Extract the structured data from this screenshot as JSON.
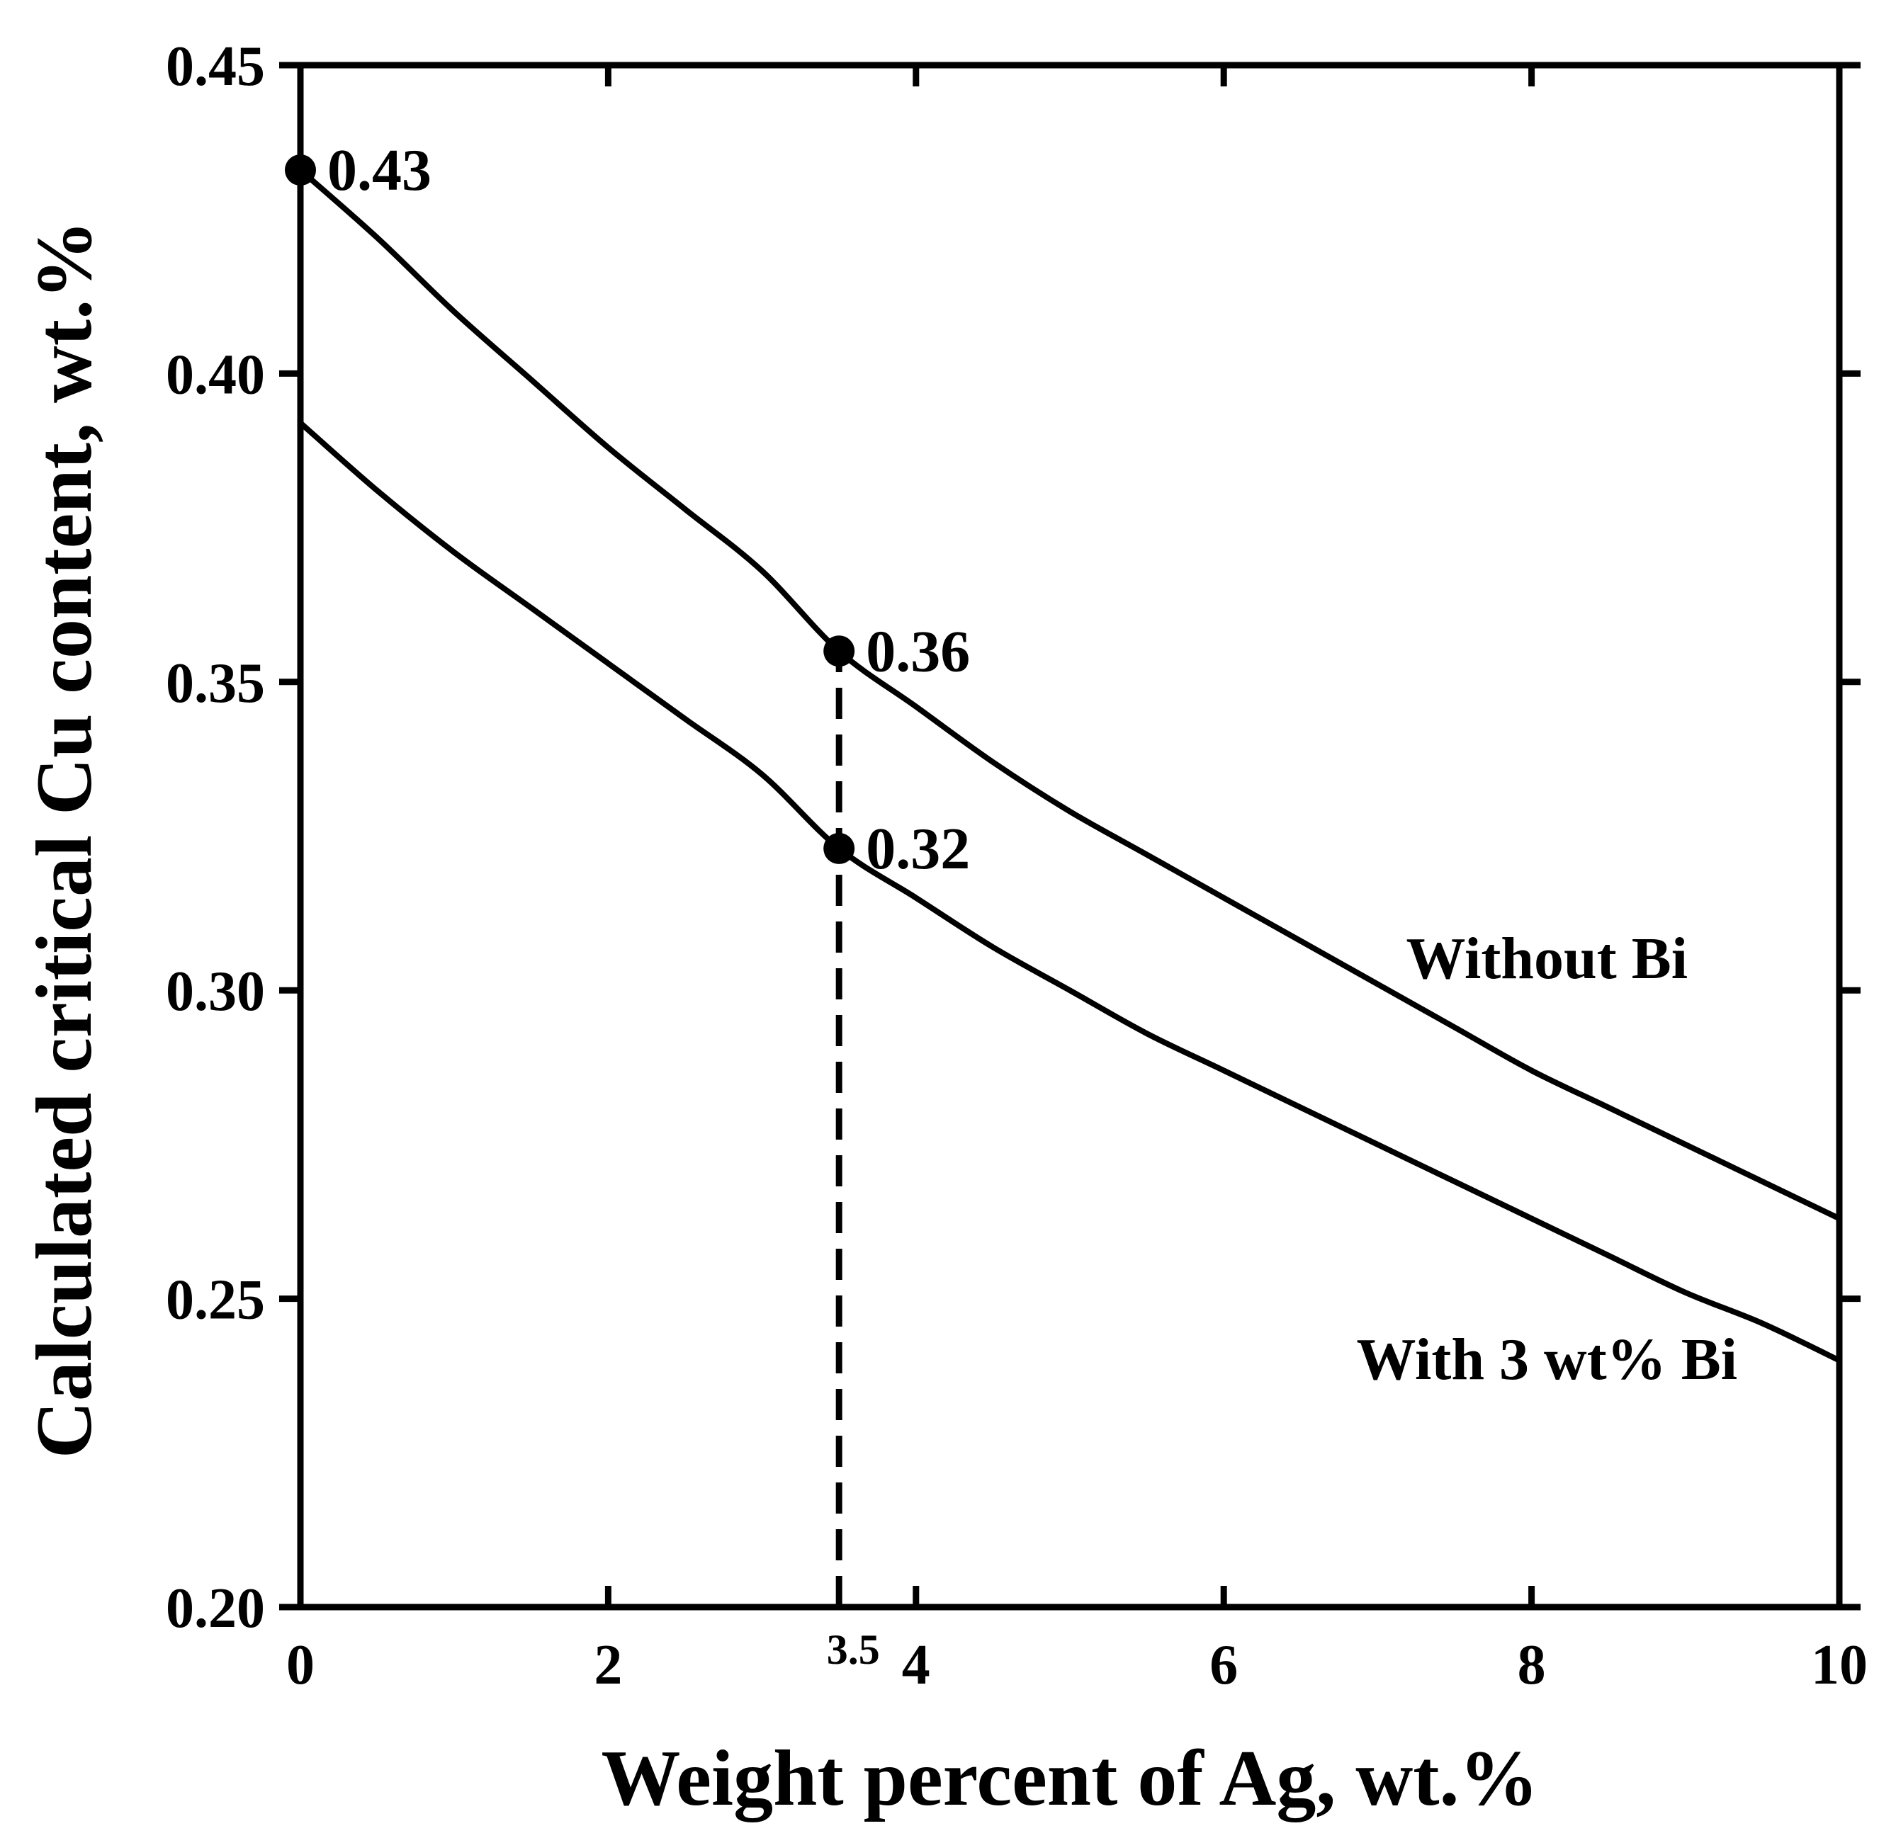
{
  "chart_data": {
    "type": "line",
    "xlabel": "Weight percent of Ag, wt.%",
    "ylabel": "Calculated critical Cu content, wt.%",
    "xlim": [
      0,
      10
    ],
    "ylim": [
      0.2,
      0.45
    ],
    "x_ticks": [
      0,
      2,
      4,
      6,
      8,
      10
    ],
    "x_tick_labels": [
      "0",
      "2",
      "4",
      "6",
      "8",
      "10"
    ],
    "y_ticks": [
      0.2,
      0.25,
      0.3,
      0.35,
      0.4,
      0.45
    ],
    "y_tick_labels": [
      "0.20",
      "0.25",
      "0.30",
      "0.35",
      "0.40",
      "0.45"
    ],
    "grid": false,
    "series": [
      {
        "name": "Without Bi",
        "x": [
          0,
          0.5,
          1,
          1.5,
          2,
          2.5,
          3,
          3.5,
          4,
          4.5,
          5,
          5.5,
          6,
          6.5,
          7,
          7.5,
          8,
          8.5,
          9,
          9.5,
          10
        ],
        "y": [
          0.433,
          0.422,
          0.41,
          0.399,
          0.388,
          0.378,
          0.368,
          0.355,
          0.346,
          0.337,
          0.329,
          0.322,
          0.315,
          0.308,
          0.301,
          0.294,
          0.287,
          0.281,
          0.275,
          0.269,
          0.263
        ]
      },
      {
        "name": "With 3 wt% Bi",
        "x": [
          0,
          0.5,
          1,
          1.5,
          2,
          2.5,
          3,
          3.5,
          4,
          4.5,
          5,
          5.5,
          6,
          6.5,
          7,
          7.5,
          8,
          8.5,
          9,
          9.5,
          10
        ],
        "y": [
          0.392,
          0.381,
          0.371,
          0.362,
          0.353,
          0.344,
          0.335,
          0.323,
          0.315,
          0.307,
          0.3,
          0.293,
          0.287,
          0.281,
          0.275,
          0.269,
          0.263,
          0.257,
          0.251,
          0.246,
          0.24
        ]
      }
    ],
    "markers": [
      {
        "x": 0,
        "y": 0.433,
        "label": "0.43"
      },
      {
        "x": 3.5,
        "y": 0.355,
        "label": "0.36"
      },
      {
        "x": 3.5,
        "y": 0.323,
        "label": "0.32"
      }
    ],
    "reference_line": {
      "x": 3.5,
      "y_from": 0.2,
      "y_to": 0.355,
      "style": "dashed",
      "label": "3.5"
    },
    "annotations": [
      {
        "text": "Without Bi",
        "x": 8.1,
        "y": 0.302
      },
      {
        "text": "With 3 wt% Bi",
        "x": 8.1,
        "y": 0.237
      }
    ]
  }
}
